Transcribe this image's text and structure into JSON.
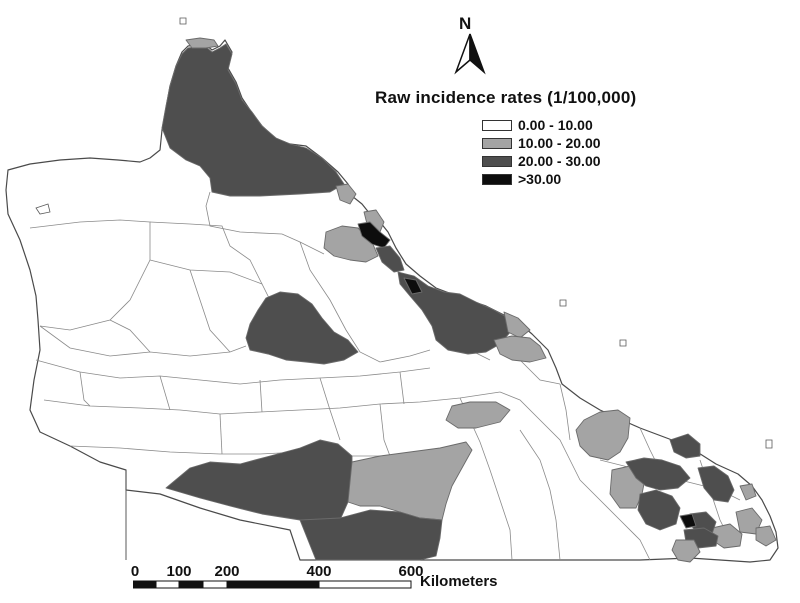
{
  "legend": {
    "title": "Raw incidence rates (1/100,000)",
    "classes": [
      {
        "label": "0.00 - 10.00",
        "color": "#ffffff"
      },
      {
        "label": "10.00 - 20.00",
        "color": "#a4a4a4"
      },
      {
        "label": "20.00 - 30.00",
        "color": "#4e4e4e"
      },
      {
        "label": ">30.00",
        "color": "#0d0d0d"
      }
    ]
  },
  "north_arrow": {
    "label": "N"
  },
  "scale_bar": {
    "ticks": [
      "0",
      "100",
      "200",
      "400",
      "600"
    ],
    "unit": "Kilometers"
  }
}
